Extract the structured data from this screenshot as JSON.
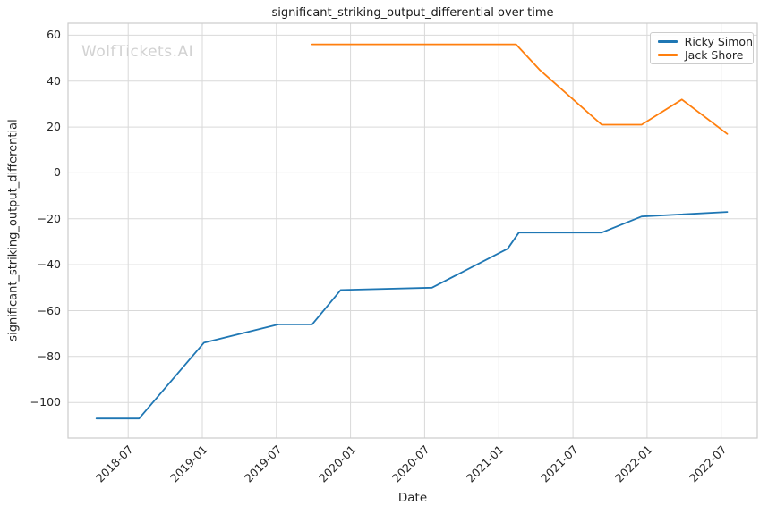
{
  "figure": {
    "title": "significant_striking_output_differential over time",
    "watermark": "WolfTickets.AI",
    "xlabel": "Date",
    "ylabel": "significant_striking_output_differential"
  },
  "legend": {
    "position": "upper right",
    "items": [
      {
        "label": "Ricky Simon",
        "color": "#1f77b4"
      },
      {
        "label": "Jack Shore",
        "color": "#ff7f0e"
      }
    ]
  },
  "chart_data": {
    "type": "line",
    "title": "significant_striking_output_differential over time",
    "xlabel": "Date",
    "ylabel": "significant_striking_output_differential",
    "grid": true,
    "legend_position": "upper right",
    "x_domain": [
      "2018-02-05",
      "2022-09-29"
    ],
    "ylim": [
      -115.5,
      65.2
    ],
    "x_ticks": [
      {
        "value": "2018-07-01",
        "label": "2018-07"
      },
      {
        "value": "2019-01-01",
        "label": "2019-01"
      },
      {
        "value": "2019-07-01",
        "label": "2019-07"
      },
      {
        "value": "2020-01-01",
        "label": "2020-01"
      },
      {
        "value": "2020-07-01",
        "label": "2020-07"
      },
      {
        "value": "2021-01-01",
        "label": "2021-01"
      },
      {
        "value": "2021-07-01",
        "label": "2021-07"
      },
      {
        "value": "2022-01-01",
        "label": "2022-01"
      },
      {
        "value": "2022-07-01",
        "label": "2022-07"
      }
    ],
    "y_ticks": [
      -100,
      -80,
      -60,
      -40,
      -20,
      0,
      20,
      40,
      60
    ],
    "series": [
      {
        "name": "Ricky Simon",
        "color": "#1f77b4",
        "points": [
          {
            "date": "2018-04-14",
            "value": -107
          },
          {
            "date": "2018-07-28",
            "value": -107
          },
          {
            "date": "2019-01-05",
            "value": -74
          },
          {
            "date": "2019-07-06",
            "value": -66
          },
          {
            "date": "2019-09-28",
            "value": -66
          },
          {
            "date": "2019-12-07",
            "value": -51
          },
          {
            "date": "2020-07-19",
            "value": -50
          },
          {
            "date": "2021-01-23",
            "value": -33
          },
          {
            "date": "2021-02-20",
            "value": -26
          },
          {
            "date": "2021-09-11",
            "value": -26
          },
          {
            "date": "2021-12-18",
            "value": -19
          },
          {
            "date": "2022-07-16",
            "value": -17
          }
        ]
      },
      {
        "name": "Jack Shore",
        "color": "#ff7f0e",
        "points": [
          {
            "date": "2019-09-28",
            "value": 56
          },
          {
            "date": "2021-02-13",
            "value": 56
          },
          {
            "date": "2021-04-10",
            "value": 45
          },
          {
            "date": "2021-09-11",
            "value": 21
          },
          {
            "date": "2021-12-18",
            "value": 21
          },
          {
            "date": "2022-03-26",
            "value": 32
          },
          {
            "date": "2022-07-16",
            "value": 17
          }
        ]
      }
    ]
  },
  "style_colors": {
    "grid": "#d9d9d9",
    "frame": "#cccccc",
    "tick_text": "#262626",
    "watermark": "#d2d2d2"
  }
}
